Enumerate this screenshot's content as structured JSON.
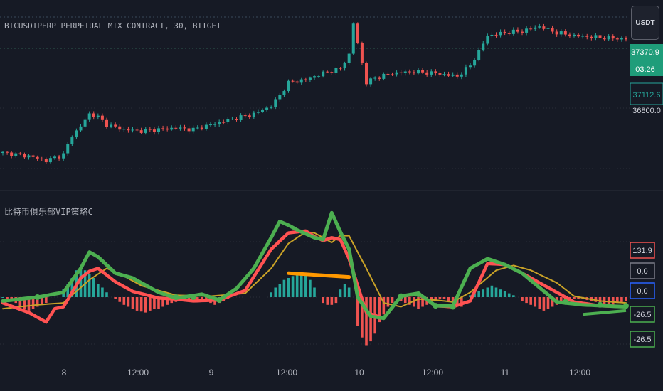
{
  "header": {
    "symbol_line": "BTCUSDTPERP PERPETUAL MIX CONTRACT, 30, BITGET",
    "currency_button": "USDT"
  },
  "price_axis": {
    "last_price": "37370.9",
    "countdown": "03:26",
    "ref_price": "37112.6",
    "level_label": "36800.0"
  },
  "indicator": {
    "name": "比特币俱乐部VIP策略C",
    "tags": [
      {
        "label": "131.9",
        "color": "#f05350"
      },
      {
        "label": "0.0",
        "color": "#787b86"
      },
      {
        "label": "0.0",
        "color": "#2962ff"
      },
      {
        "label": "-26.5",
        "color": "#4caf50"
      },
      {
        "label": "-26.5",
        "color": "#4caf50"
      }
    ]
  },
  "time_axis": {
    "ticks": [
      "8",
      "12:00",
      "9",
      "12:00",
      "10",
      "12:00",
      "11",
      "12:00"
    ]
  },
  "colors": {
    "up": "#26a69a",
    "down": "#ef5350",
    "green_line": "#4caf50",
    "red_line": "#ff5252",
    "gold_line": "#c9a227",
    "hist_pos": "#26a69a",
    "hist_neg": "#ef5350",
    "trend_orange": "#ff9800"
  },
  "chart_data": [
    {
      "type": "candlestick",
      "title": "BTCUSDTPERP PERPETUAL MIX CONTRACT, 30, BITGET",
      "interval_minutes": 30,
      "x_ticks": [
        "8",
        "12:00",
        "9",
        "12:00",
        "10",
        "12:00",
        "11",
        "12:00"
      ],
      "y_labels": [
        "37370.9",
        "37112.6",
        "36800.0"
      ],
      "close_path": [
        [
          0,
          36550
        ],
        [
          6,
          36530
        ],
        [
          10,
          36500
        ],
        [
          14,
          36540
        ],
        [
          16,
          36660
        ],
        [
          18,
          36720
        ],
        [
          20,
          36800
        ],
        [
          22,
          36780
        ],
        [
          24,
          36730
        ],
        [
          28,
          36700
        ],
        [
          32,
          36690
        ],
        [
          36,
          36700
        ],
        [
          40,
          36710
        ],
        [
          44,
          36700
        ],
        [
          48,
          36730
        ],
        [
          52,
          36760
        ],
        [
          55,
          36780
        ],
        [
          58,
          36800
        ],
        [
          62,
          36850
        ],
        [
          64,
          36920
        ],
        [
          66,
          37000
        ],
        [
          70,
          37020
        ],
        [
          74,
          37060
        ],
        [
          78,
          37090
        ],
        [
          80,
          37180
        ],
        [
          81,
          37380
        ],
        [
          82,
          37250
        ],
        [
          84,
          37000
        ],
        [
          86,
          37030
        ],
        [
          90,
          37060
        ],
        [
          95,
          37070
        ],
        [
          100,
          37060
        ],
        [
          105,
          37040
        ],
        [
          108,
          37110
        ],
        [
          110,
          37200
        ],
        [
          112,
          37300
        ],
        [
          116,
          37320
        ],
        [
          120,
          37330
        ],
        [
          124,
          37360
        ],
        [
          128,
          37320
        ],
        [
          132,
          37300
        ],
        [
          138,
          37290
        ],
        [
          144,
          37280
        ]
      ]
    },
    {
      "type": "line",
      "title": "比特币俱乐部VIP策略C",
      "series": [
        {
          "name": "",
          "color": "#4caf50",
          "points": [
            [
              0,
              -4
            ],
            [
              8,
              0
            ],
            [
              14,
              5
            ],
            [
              18,
              30
            ],
            [
              20,
              47
            ],
            [
              22,
              42
            ],
            [
              26,
              25
            ],
            [
              30,
              20
            ],
            [
              36,
              5
            ],
            [
              40,
              -1
            ],
            [
              46,
              3
            ],
            [
              50,
              -3
            ],
            [
              54,
              9
            ],
            [
              58,
              30
            ],
            [
              62,
              62
            ],
            [
              64,
              79
            ],
            [
              66,
              75
            ],
            [
              68,
              70
            ],
            [
              72,
              62
            ],
            [
              74,
              60
            ],
            [
              76,
              88
            ],
            [
              78,
              68
            ],
            [
              80,
              50
            ],
            [
              82,
              0
            ],
            [
              85,
              -20
            ],
            [
              88,
              -22
            ],
            [
              92,
              1
            ],
            [
              96,
              4
            ],
            [
              100,
              -9
            ],
            [
              104,
              -9
            ],
            [
              108,
              30
            ],
            [
              112,
              40
            ],
            [
              116,
              34
            ],
            [
              120,
              25
            ],
            [
              124,
              10
            ],
            [
              128,
              -5
            ],
            [
              134,
              -8
            ],
            [
              144,
              -10
            ]
          ]
        },
        {
          "name": "",
          "color": "#ff5252",
          "points": [
            [
              0,
              -6
            ],
            [
              6,
              -16
            ],
            [
              10,
              -26
            ],
            [
              12,
              -12
            ],
            [
              14,
              -10
            ],
            [
              18,
              20
            ],
            [
              20,
              27
            ],
            [
              22,
              30
            ],
            [
              26,
              16
            ],
            [
              30,
              6
            ],
            [
              36,
              -1
            ],
            [
              40,
              -2
            ],
            [
              44,
              -4
            ],
            [
              50,
              -3
            ],
            [
              56,
              7
            ],
            [
              62,
              50
            ],
            [
              66,
              67
            ],
            [
              70,
              69
            ],
            [
              72,
              63
            ],
            [
              74,
              59
            ],
            [
              76,
              62
            ],
            [
              78,
              60
            ],
            [
              80,
              40
            ],
            [
              84,
              -16
            ],
            [
              88,
              -22
            ],
            [
              92,
              1
            ],
            [
              96,
              3
            ],
            [
              100,
              -9
            ],
            [
              104,
              -10
            ],
            [
              108,
              -4
            ],
            [
              112,
              35
            ],
            [
              116,
              34
            ],
            [
              120,
              25
            ],
            [
              126,
              10
            ],
            [
              132,
              -5
            ],
            [
              138,
              -9
            ],
            [
              144,
              -10
            ]
          ]
        },
        {
          "name": "",
          "color": "#c9a227",
          "points": [
            [
              0,
              -12
            ],
            [
              8,
              -8
            ],
            [
              14,
              -6
            ],
            [
              20,
              18
            ],
            [
              24,
              30
            ],
            [
              28,
              22
            ],
            [
              32,
              12
            ],
            [
              40,
              2
            ],
            [
              48,
              1
            ],
            [
              56,
              4
            ],
            [
              62,
              30
            ],
            [
              66,
              56
            ],
            [
              70,
              68
            ],
            [
              72,
              67
            ],
            [
              76,
              57
            ],
            [
              78,
              64
            ],
            [
              80,
              64
            ],
            [
              84,
              30
            ],
            [
              88,
              -6
            ],
            [
              92,
              -10
            ],
            [
              96,
              -2
            ],
            [
              100,
              -3
            ],
            [
              104,
              -5
            ],
            [
              108,
              5
            ],
            [
              114,
              28
            ],
            [
              118,
              33
            ],
            [
              122,
              28
            ],
            [
              128,
              15
            ],
            [
              132,
              1
            ],
            [
              138,
              -4
            ],
            [
              144,
              -6
            ]
          ]
        }
      ]
    },
    {
      "type": "bar",
      "title": "比特币俱乐部VIP策略C histogram",
      "segments": [
        {
          "from": 0,
          "to": 10,
          "values": [
            0,
            -2,
            -4,
            -6,
            -10,
            -12,
            -14,
            -12,
            -10,
            -8,
            -6
          ]
        },
        {
          "from": 14,
          "to": 24,
          "values": [
            8,
            14,
            20,
            28,
            30,
            28,
            24,
            20,
            14,
            10,
            5
          ]
        },
        {
          "from": 26,
          "to": 52,
          "values": [
            -2,
            -5,
            -8,
            -10,
            -12,
            -14,
            -15,
            -16,
            -14,
            -12,
            -12,
            -10,
            -8,
            -6,
            -5,
            -4,
            -3,
            -3,
            -2,
            -2,
            -2,
            -4,
            -6,
            -8,
            -6,
            -4,
            -2
          ]
        },
        {
          "from": 62,
          "to": 72,
          "values": [
            5,
            10,
            14,
            18,
            20,
            22,
            24,
            26,
            24,
            18,
            10
          ]
        },
        {
          "from": 74,
          "to": 80,
          "values": [
            -6,
            -8,
            -8,
            -6,
            8,
            14,
            10
          ]
        },
        {
          "from": 82,
          "to": 90,
          "values": [
            -30,
            -42,
            -50,
            -46,
            -38,
            -26,
            -18,
            -10,
            -6
          ]
        },
        {
          "from": 92,
          "to": 106,
          "values": [
            -4,
            -6,
            -8,
            -10,
            -12,
            -10,
            -8,
            -6,
            -4,
            -2,
            -2,
            -4,
            -6,
            -8,
            -10
          ]
        },
        {
          "from": 108,
          "to": 118,
          "values": [
            2,
            4,
            6,
            8,
            10,
            12,
            10,
            8,
            6,
            4,
            2
          ]
        },
        {
          "from": 120,
          "to": 144,
          "values": [
            -4,
            -6,
            -8,
            -10,
            -12,
            -14,
            -12,
            -10,
            -8,
            -6,
            -4,
            -3,
            -2,
            -2,
            -2,
            -3,
            -4,
            -5,
            -6,
            -8,
            -10,
            -8,
            -6,
            -5,
            -4
          ]
        }
      ]
    }
  ]
}
